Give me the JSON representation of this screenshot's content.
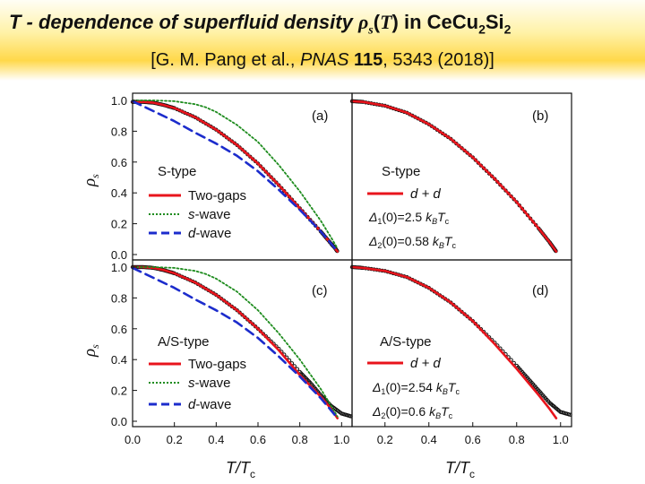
{
  "slide": {
    "title": {
      "part1": "T - dependence of superfluid density ",
      "rho": "ρ",
      "rho_sub": "s",
      "open": "(",
      "T": "T",
      "close": ")",
      "in_text": " in Ce",
      "cu": "Cu",
      "cu_sub": "2",
      "si": "Si",
      "si_sub": "2"
    },
    "citation": {
      "authors": "[G. M. Pang et al., ",
      "journal": "PNAS",
      "volume": "115",
      "pages": ", 5343 (2018)]"
    }
  },
  "colors": {
    "two_gaps": "#e8141c",
    "s_wave": "#1e8c1e",
    "d_wave": "#1c2ccc",
    "data": "#111111"
  },
  "chart_data": [
    {
      "panel": "(a)",
      "type": "line",
      "type_label": "S-type",
      "xlim": [
        0,
        1.05
      ],
      "ylim": [
        0,
        1.05
      ],
      "x_ticks": [],
      "y_ticks": [
        "0.0",
        "0.2",
        "0.4",
        "0.6",
        "0.8",
        "1.0"
      ],
      "ylabel": "ρ",
      "ylabel_sub": "s",
      "legend": [
        {
          "style": "two_gaps",
          "label": "Two-gaps"
        },
        {
          "style": "s_wave",
          "label": "s",
          "suffix": "-wave"
        },
        {
          "style": "d_wave",
          "label": "d",
          "suffix": "-wave"
        }
      ],
      "series": [
        {
          "name": "data",
          "x": [
            0.0,
            0.05,
            0.1,
            0.15,
            0.2,
            0.3,
            0.4,
            0.5,
            0.6,
            0.7,
            0.8,
            0.9,
            0.95,
            0.97,
            0.98
          ],
          "y": [
            0.99,
            0.99,
            0.985,
            0.97,
            0.95,
            0.89,
            0.81,
            0.71,
            0.59,
            0.45,
            0.3,
            0.15,
            0.07,
            0.04,
            0.02
          ]
        },
        {
          "name": "Two-gaps",
          "x": [
            0.0,
            0.05,
            0.1,
            0.15,
            0.2,
            0.3,
            0.4,
            0.5,
            0.6,
            0.7,
            0.8,
            0.9,
            0.95,
            0.98
          ],
          "y": [
            0.99,
            0.99,
            0.985,
            0.97,
            0.95,
            0.89,
            0.81,
            0.71,
            0.59,
            0.45,
            0.3,
            0.15,
            0.07,
            0.02
          ]
        },
        {
          "name": "s-wave",
          "x": [
            0.0,
            0.1,
            0.2,
            0.3,
            0.35,
            0.4,
            0.5,
            0.6,
            0.7,
            0.8,
            0.9,
            0.95,
            0.98
          ],
          "y": [
            1.0,
            1.0,
            0.995,
            0.975,
            0.955,
            0.925,
            0.84,
            0.73,
            0.58,
            0.41,
            0.22,
            0.11,
            0.04
          ]
        },
        {
          "name": "d-wave",
          "x": [
            0.0,
            0.1,
            0.2,
            0.3,
            0.4,
            0.5,
            0.6,
            0.7,
            0.8,
            0.9,
            0.95,
            0.98
          ],
          "y": [
            0.995,
            0.93,
            0.865,
            0.79,
            0.72,
            0.64,
            0.54,
            0.42,
            0.29,
            0.15,
            0.07,
            0.02
          ]
        }
      ]
    },
    {
      "panel": "(b)",
      "type": "line",
      "type_label": "S-type",
      "xlim": [
        0.05,
        1.05
      ],
      "ylim": [
        0,
        1.05
      ],
      "legend": [
        {
          "style": "two_gaps",
          "label": "d + d"
        }
      ],
      "gap1": {
        "sym": "Δ",
        "sub": "1",
        "value": "(0)=2.5 ",
        "k": "k",
        "ksub": "B",
        "T": "T",
        "Tsub": "c"
      },
      "gap2": {
        "sym": "Δ",
        "sub": "2",
        "value": "(0)=0.58 ",
        "k": "k",
        "ksub": "B",
        "T": "T",
        "Tsub": "c"
      },
      "series": [
        {
          "name": "data",
          "x": [
            0.05,
            0.1,
            0.2,
            0.3,
            0.4,
            0.5,
            0.6,
            0.7,
            0.8,
            0.9,
            0.95,
            0.97,
            0.98
          ],
          "y": [
            0.995,
            0.99,
            0.965,
            0.92,
            0.845,
            0.75,
            0.63,
            0.49,
            0.34,
            0.17,
            0.08,
            0.04,
            0.02
          ]
        },
        {
          "name": "d + d",
          "x": [
            0.05,
            0.1,
            0.2,
            0.3,
            0.4,
            0.5,
            0.6,
            0.7,
            0.8,
            0.9,
            0.95,
            0.98
          ],
          "y": [
            0.995,
            0.99,
            0.965,
            0.92,
            0.845,
            0.75,
            0.63,
            0.49,
            0.34,
            0.17,
            0.08,
            0.02
          ]
        }
      ]
    },
    {
      "panel": "(c)",
      "type": "line",
      "type_label": "A/S-type",
      "xlim": [
        0,
        1.05
      ],
      "ylim": [
        0,
        1.05
      ],
      "x_ticks": [
        "0.0",
        "0.2",
        "0.4",
        "0.6",
        "0.8",
        "1.0"
      ],
      "y_ticks": [
        "0.0",
        "0.2",
        "0.4",
        "0.6",
        "0.8",
        "1.0"
      ],
      "xlabel": "T/T",
      "xlabel_sub": "c",
      "ylabel": "ρ",
      "ylabel_sub": "s",
      "legend": [
        {
          "style": "two_gaps",
          "label": "Two-gaps"
        },
        {
          "style": "s_wave",
          "label": "s",
          "suffix": "-wave"
        },
        {
          "style": "d_wave",
          "label": "d",
          "suffix": "-wave"
        }
      ],
      "series": [
        {
          "name": "data",
          "x": [
            0.0,
            0.05,
            0.1,
            0.15,
            0.2,
            0.3,
            0.4,
            0.5,
            0.6,
            0.7,
            0.8,
            0.85,
            0.9,
            0.95,
            1.0,
            1.05
          ],
          "y": [
            1.0,
            1.0,
            0.995,
            0.98,
            0.96,
            0.9,
            0.82,
            0.72,
            0.6,
            0.47,
            0.32,
            0.25,
            0.17,
            0.1,
            0.05,
            0.03
          ]
        },
        {
          "name": "Two-gaps",
          "x": [
            0.0,
            0.05,
            0.1,
            0.15,
            0.2,
            0.3,
            0.4,
            0.5,
            0.6,
            0.7,
            0.8,
            0.9,
            0.95,
            0.98
          ],
          "y": [
            1.0,
            1.0,
            0.995,
            0.98,
            0.96,
            0.9,
            0.82,
            0.72,
            0.6,
            0.46,
            0.3,
            0.16,
            0.08,
            0.02
          ]
        },
        {
          "name": "s-wave",
          "x": [
            0.0,
            0.1,
            0.2,
            0.3,
            0.35,
            0.4,
            0.5,
            0.6,
            0.7,
            0.8,
            0.9,
            0.95,
            0.98
          ],
          "y": [
            1.0,
            1.0,
            0.995,
            0.975,
            0.955,
            0.925,
            0.84,
            0.72,
            0.57,
            0.4,
            0.21,
            0.1,
            0.03
          ]
        },
        {
          "name": "d-wave",
          "x": [
            0.0,
            0.1,
            0.2,
            0.3,
            0.4,
            0.5,
            0.6,
            0.7,
            0.8,
            0.9,
            0.95,
            0.98
          ],
          "y": [
            0.995,
            0.93,
            0.865,
            0.79,
            0.72,
            0.64,
            0.54,
            0.42,
            0.29,
            0.15,
            0.07,
            0.02
          ]
        }
      ]
    },
    {
      "panel": "(d)",
      "type": "line",
      "type_label": "A/S-type",
      "xlim": [
        0.05,
        1.05
      ],
      "ylim": [
        0,
        1.05
      ],
      "x_ticks": [
        "0.2",
        "0.4",
        "0.6",
        "0.8",
        "1.0"
      ],
      "xlabel": "T/T",
      "xlabel_sub": "c",
      "legend": [
        {
          "style": "two_gaps",
          "label": "d + d"
        }
      ],
      "gap1": {
        "sym": "Δ",
        "sub": "1",
        "value": "(0)=2.54 ",
        "k": "k",
        "ksub": "B",
        "T": "T",
        "Tsub": "c"
      },
      "gap2": {
        "sym": "Δ",
        "sub": "2",
        "value": "(0)=0.6 ",
        "k": "k",
        "ksub": "B",
        "T": "T",
        "Tsub": "c"
      },
      "series": [
        {
          "name": "data",
          "x": [
            0.05,
            0.1,
            0.2,
            0.3,
            0.4,
            0.5,
            0.6,
            0.7,
            0.8,
            0.85,
            0.9,
            0.95,
            1.0,
            1.05
          ],
          "y": [
            1.0,
            0.995,
            0.975,
            0.935,
            0.865,
            0.77,
            0.65,
            0.51,
            0.36,
            0.28,
            0.2,
            0.12,
            0.06,
            0.04
          ]
        },
        {
          "name": "d + d",
          "x": [
            0.05,
            0.1,
            0.2,
            0.3,
            0.4,
            0.5,
            0.6,
            0.7,
            0.8,
            0.9,
            0.95,
            0.98
          ],
          "y": [
            1.0,
            0.995,
            0.975,
            0.935,
            0.865,
            0.77,
            0.65,
            0.5,
            0.34,
            0.17,
            0.08,
            0.02
          ]
        }
      ]
    }
  ]
}
